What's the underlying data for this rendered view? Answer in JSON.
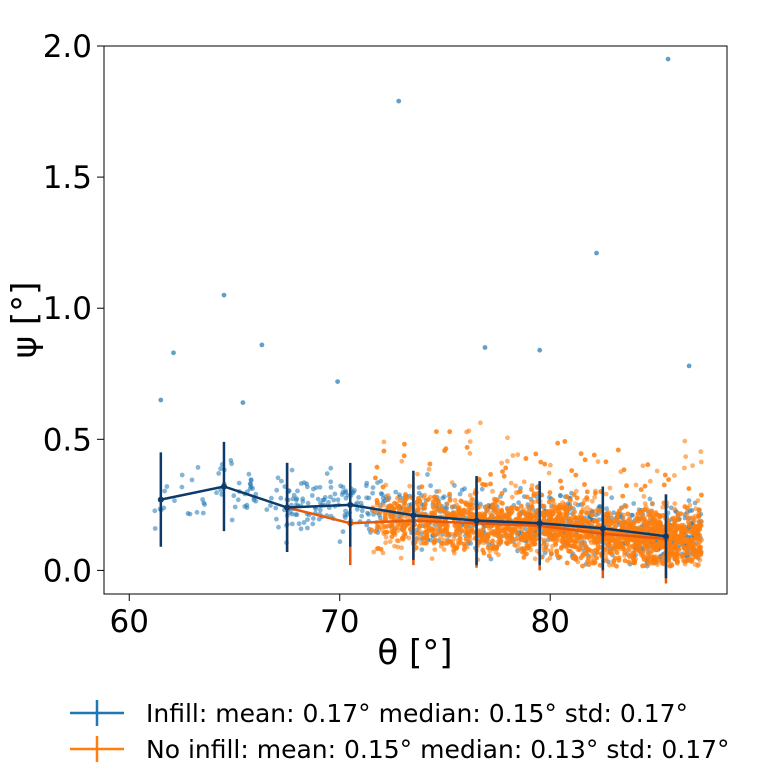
{
  "chart_data": {
    "type": "scatter",
    "title": "",
    "xlabel": "θ [°]",
    "ylabel": "ψ [°]",
    "xlim": [
      58.8,
      88.4
    ],
    "ylim": [
      -0.09,
      2.0
    ],
    "x_ticks": [
      60,
      70,
      80
    ],
    "x_tick_labels": [
      "60",
      "70",
      "80"
    ],
    "y_ticks": [
      0.0,
      0.5,
      1.0,
      1.5,
      2.0
    ],
    "y_tick_labels": [
      "0.0",
      "0.5",
      "1.0",
      "1.5",
      "2.0"
    ],
    "grid": false,
    "legend_position": "bottom-center",
    "colors": {
      "infill_scatter": "#1f77b4",
      "no_infill_scatter": "#ff7f0e",
      "infill_line": "#0b3a6b",
      "no_infill_line": "#e8590c"
    },
    "series": [
      {
        "name": "Infill",
        "legend_label": "Infill: mean: 0.17° median: 0.15°  std: 0.17°",
        "x_range": [
          60,
          87.2
        ],
        "approx_point_count": 900,
        "outliers": [
          {
            "x": 72.8,
            "y": 1.79
          },
          {
            "x": 85.6,
            "y": 1.95
          },
          {
            "x": 82.2,
            "y": 1.21
          },
          {
            "x": 64.5,
            "y": 1.05
          },
          {
            "x": 66.3,
            "y": 0.86
          },
          {
            "x": 62.1,
            "y": 0.83
          },
          {
            "x": 76.9,
            "y": 0.85
          },
          {
            "x": 79.5,
            "y": 0.84
          },
          {
            "x": 86.6,
            "y": 0.78
          },
          {
            "x": 69.9,
            "y": 0.72
          },
          {
            "x": 61.5,
            "y": 0.65
          },
          {
            "x": 65.4,
            "y": 0.64
          }
        ],
        "binned_x": [
          61.5,
          64.5,
          67.5,
          70.5,
          73.5,
          76.5,
          79.5,
          82.5,
          85.5
        ],
        "binned_mean": [
          0.27,
          0.32,
          0.24,
          0.25,
          0.21,
          0.19,
          0.18,
          0.16,
          0.13
        ],
        "binned_std": [
          0.18,
          0.17,
          0.17,
          0.16,
          0.17,
          0.17,
          0.16,
          0.16,
          0.16
        ]
      },
      {
        "name": "No infill",
        "legend_label": "No infill: mean: 0.15° median: 0.13°  std: 0.17°",
        "x_range": [
          71.5,
          87.2
        ],
        "approx_point_count": 3000,
        "binned_x": [
          67.5,
          70.5,
          73.5,
          76.5,
          79.5,
          82.5,
          85.5
        ],
        "binned_mean": [
          0.24,
          0.18,
          0.19,
          0.18,
          0.17,
          0.14,
          0.12
        ],
        "binned_std": [
          0.17,
          0.16,
          0.17,
          0.17,
          0.17,
          0.17,
          0.17
        ]
      }
    ]
  }
}
